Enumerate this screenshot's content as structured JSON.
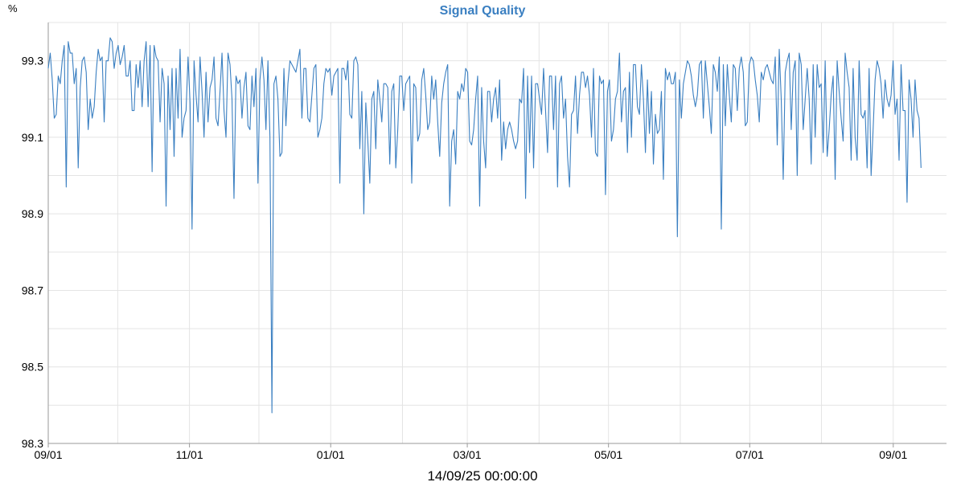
{
  "colors": {
    "line": "#3a7fc1",
    "title": "#3a7fc1",
    "grid": "#e4e4e4",
    "axis": "#9a9a9a"
  },
  "chart_data": {
    "type": "line",
    "title": "Signal Quality",
    "ylabel": "%",
    "xlabel": "14/09/25 00:00:00",
    "grid": true,
    "ylim": [
      98.3,
      99.4
    ],
    "y_ticks": [
      98.3,
      98.5,
      98.7,
      98.9,
      99.1,
      99.3
    ],
    "x_domain": [
      "2024-09-01",
      "2025-09-24"
    ],
    "x_ticks": [
      {
        "date": "2024-09-01",
        "label": "09/01"
      },
      {
        "date": "2024-11-01",
        "label": "11/01"
      },
      {
        "date": "2025-01-01",
        "label": "01/01"
      },
      {
        "date": "2025-03-01",
        "label": "03/01"
      },
      {
        "date": "2025-05-01",
        "label": "05/01"
      },
      {
        "date": "2025-07-01",
        "label": "07/01"
      },
      {
        "date": "2025-09-01",
        "label": "09/01"
      }
    ],
    "series": [
      {
        "x_start": "2024-09-01",
        "x_end": "2025-09-13",
        "values": [
          99.28,
          99.32,
          99.25,
          99.15,
          99.16,
          99.26,
          99.24,
          99.3,
          99.34,
          98.97,
          99.35,
          99.32,
          99.32,
          99.24,
          99.28,
          99.02,
          99.23,
          99.3,
          99.31,
          99.27,
          99.12,
          99.2,
          99.15,
          99.18,
          99.27,
          99.33,
          99.3,
          99.31,
          99.14,
          99.3,
          99.3,
          99.36,
          99.35,
          99.28,
          99.32,
          99.34,
          99.29,
          99.31,
          99.34,
          99.26,
          99.26,
          99.3,
          99.17,
          99.17,
          99.29,
          99.23,
          99.3,
          99.18,
          99.3,
          99.35,
          99.18,
          99.34,
          99.01,
          99.34,
          99.31,
          99.3,
          99.14,
          99.28,
          99.24,
          98.92,
          99.26,
          99.12,
          99.28,
          99.05,
          99.28,
          99.15,
          99.33,
          99.1,
          99.15,
          99.17,
          99.31,
          99.19,
          98.86,
          99.3,
          99.21,
          99.14,
          99.31,
          99.22,
          99.1,
          99.27,
          99.14,
          99.23,
          99.25,
          99.31,
          99.15,
          99.13,
          99.22,
          99.32,
          99.17,
          99.1,
          99.32,
          99.29,
          99.2,
          98.94,
          99.26,
          99.24,
          99.25,
          99.15,
          99.23,
          99.27,
          99.13,
          99.12,
          99.26,
          99.18,
          99.28,
          98.98,
          99.25,
          99.31,
          99.25,
          99.12,
          99.3,
          99.1,
          98.38,
          99.24,
          99.26,
          99.2,
          99.05,
          99.06,
          99.28,
          99.13,
          99.24,
          99.3,
          99.29,
          99.28,
          99.27,
          99.3,
          99.33,
          99.15,
          99.28,
          99.28,
          99.15,
          99.14,
          99.21,
          99.28,
          99.29,
          99.1,
          99.12,
          99.15,
          99.24,
          99.28,
          99.27,
          99.28,
          99.21,
          99.26,
          99.27,
          99.28,
          98.98,
          99.28,
          99.28,
          99.25,
          99.3,
          99.16,
          99.15,
          99.3,
          99.31,
          99.29,
          99.07,
          99.22,
          98.9,
          99.19,
          99.09,
          98.98,
          99.2,
          99.22,
          99.07,
          99.25,
          99.2,
          99.14,
          99.24,
          99.24,
          99.23,
          99.03,
          99.22,
          99.24,
          99.02,
          99.12,
          99.26,
          99.26,
          99.17,
          99.24,
          99.25,
          99.26,
          98.98,
          99.24,
          99.23,
          99.09,
          99.11,
          99.25,
          99.28,
          99.21,
          99.12,
          99.14,
          99.26,
          99.2,
          99.25,
          99.14,
          99.05,
          99.19,
          99.24,
          99.27,
          99.29,
          98.92,
          99.09,
          99.12,
          99.03,
          99.22,
          99.2,
          99.24,
          99.22,
          99.28,
          99.27,
          99.09,
          99.08,
          99.12,
          99.2,
          99.26,
          98.92,
          99.23,
          99.09,
          99.02,
          99.22,
          99.22,
          99.14,
          99.2,
          99.23,
          99.15,
          99.25,
          99.04,
          99.14,
          99.07,
          99.12,
          99.14,
          99.12,
          99.09,
          99.07,
          99.09,
          99.2,
          99.19,
          99.28,
          98.94,
          99.26,
          99.06,
          99.26,
          99.02,
          99.24,
          99.24,
          99.2,
          99.16,
          99.28,
          99.17,
          99.06,
          99.26,
          99.26,
          99.12,
          99.26,
          98.97,
          99.24,
          99.26,
          99.15,
          99.2,
          99.05,
          98.97,
          99.16,
          99.17,
          99.26,
          99.11,
          99.21,
          99.27,
          99.27,
          99.23,
          99.26,
          99.21,
          99.1,
          99.28,
          99.06,
          99.05,
          99.26,
          99.24,
          99.25,
          98.95,
          99.22,
          99.25,
          99.09,
          99.12,
          99.2,
          99.22,
          99.32,
          99.14,
          99.22,
          99.23,
          99.06,
          99.27,
          99.1,
          99.29,
          99.29,
          99.18,
          99.16,
          99.29,
          99.2,
          99.06,
          99.25,
          99.11,
          99.22,
          99.03,
          99.16,
          99.11,
          99.12,
          99.22,
          98.99,
          99.28,
          99.25,
          99.27,
          99.24,
          99.24,
          99.27,
          98.84,
          99.25,
          99.15,
          99.24,
          99.27,
          99.3,
          99.29,
          99.26,
          99.21,
          99.18,
          99.21,
          99.29,
          99.3,
          99.15,
          99.3,
          99.24,
          99.18,
          99.11,
          99.29,
          99.27,
          99.22,
          99.31,
          98.86,
          99.29,
          99.13,
          99.29,
          99.21,
          99.14,
          99.29,
          99.28,
          99.17,
          99.28,
          99.31,
          99.27,
          99.13,
          99.14,
          99.29,
          99.31,
          99.3,
          99.25,
          99.21,
          99.14,
          99.27,
          99.25,
          99.28,
          99.29,
          99.27,
          99.25,
          99.24,
          99.31,
          99.08,
          99.33,
          99.2,
          98.99,
          99.27,
          99.3,
          99.32,
          99.12,
          99.27,
          99.3,
          99.0,
          99.32,
          99.29,
          99.12,
          99.2,
          99.28,
          99.2,
          99.03,
          99.29,
          99.1,
          99.29,
          99.23,
          99.24,
          99.06,
          99.3,
          99.05,
          99.12,
          99.21,
          99.26,
          98.99,
          99.3,
          99.22,
          99.15,
          99.09,
          99.32,
          99.27,
          99.23,
          99.04,
          99.28,
          99.1,
          99.04,
          99.3,
          99.16,
          99.15,
          99.17,
          99.02,
          99.28,
          99.0,
          99.12,
          99.25,
          99.3,
          99.28,
          99.24,
          99.15,
          99.25,
          99.2,
          99.18,
          99.21,
          99.3,
          99.16,
          99.2,
          99.04,
          99.29,
          99.17,
          99.17,
          98.93,
          99.25,
          99.2,
          99.1,
          99.25,
          99.17,
          99.15,
          99.02
        ]
      }
    ]
  }
}
